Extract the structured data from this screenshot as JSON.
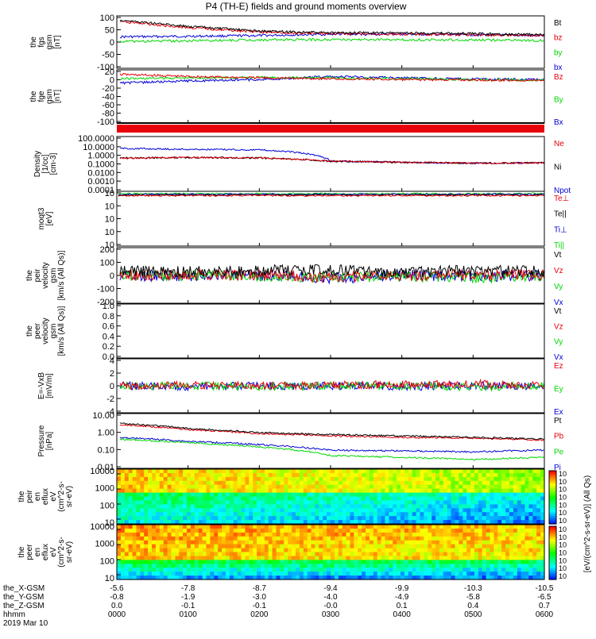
{
  "title": "P4 (TH-E) fields and ground moments overview",
  "colors": {
    "black": "#000000",
    "red": "#e8000b",
    "green": "#00d800",
    "blue": "#0000d6"
  },
  "panels": [
    {
      "id": "fgs-mag",
      "ylabel": [
        "the",
        "fgs",
        "gsm",
        "[nT]"
      ],
      "ticks": [
        "100",
        "50",
        "0",
        "-50",
        "-100"
      ],
      "legend": [
        {
          "label": "Bt",
          "color": "black"
        },
        {
          "label": "bz",
          "color": "red"
        },
        {
          "label": "by",
          "color": "green"
        },
        {
          "label": "bx",
          "color": "blue"
        }
      ]
    },
    {
      "id": "fge-mag",
      "ylabel": [
        "the",
        "fge",
        "gsm",
        "[nT]"
      ],
      "ticks": [
        "20",
        "0",
        "-20",
        "-40",
        "-60",
        "-80",
        "-100"
      ],
      "legend": [
        {
          "label": "Bz",
          "color": "red"
        },
        {
          "label": "By",
          "color": "green"
        },
        {
          "label": "Bx",
          "color": "blue"
        }
      ]
    },
    {
      "id": "density",
      "ylabel": [
        "Density",
        "[1/cc]",
        "[cm-3]"
      ],
      "ticks": [
        "100.0000",
        "10.0000",
        "1.0000",
        "0.1000",
        "0.0100",
        "0.0010",
        "0.0001"
      ],
      "legend": [
        {
          "label": "Ne",
          "color": "red"
        },
        {
          "label": "Ni",
          "color": "black"
        },
        {
          "label": "Npot",
          "color": "blue"
        }
      ]
    },
    {
      "id": "temperature",
      "ylabel": [
        "moqt3",
        "[eV]"
      ],
      "ticks": [
        "10",
        "10",
        "10",
        "10",
        "10"
      ],
      "legend": [
        {
          "label": "Te⊥",
          "color": "red"
        },
        {
          "label": "Te||",
          "color": "black"
        },
        {
          "label": "Ti⊥",
          "color": "blue"
        },
        {
          "label": "Ti||",
          "color": "green"
        }
      ]
    },
    {
      "id": "peir-velocity",
      "ylabel": [
        "the",
        "peir",
        "velocity",
        "gsm",
        "[km/s (All Qs)]"
      ],
      "ticks": [
        "200",
        "100",
        "0",
        "-100",
        "-200"
      ],
      "legend": [
        {
          "label": "Vt",
          "color": "black"
        },
        {
          "label": "Vz",
          "color": "red"
        },
        {
          "label": "Vy",
          "color": "green"
        },
        {
          "label": "Vx",
          "color": "blue"
        }
      ]
    },
    {
      "id": "peer-velocity",
      "ylabel": [
        "the",
        "peer",
        "velocity",
        "gsm",
        "[km/s (All Qs)]"
      ],
      "ticks": [
        "1.0",
        "0.8",
        "0.6",
        "0.4",
        "0.2",
        "0.0"
      ],
      "legend": [
        {
          "label": "Vt",
          "color": "black"
        },
        {
          "label": "Vz",
          "color": "red"
        },
        {
          "label": "Vy",
          "color": "green"
        },
        {
          "label": "Vx",
          "color": "blue"
        }
      ]
    },
    {
      "id": "efield",
      "ylabel": [
        "E=-VxB",
        "[mV/m]"
      ],
      "ticks": [
        "4",
        "2",
        "0",
        "-2",
        "-4"
      ],
      "legend": [
        {
          "label": "Ez",
          "color": "red"
        },
        {
          "label": "Ey",
          "color": "green"
        },
        {
          "label": "Ex",
          "color": "blue"
        }
      ]
    },
    {
      "id": "pressure",
      "ylabel": [
        "Pressure",
        "[nPa]"
      ],
      "ticks": [
        "10.00",
        "1.00",
        "0.10",
        "0.01"
      ],
      "legend": [
        {
          "label": "Pt",
          "color": "black"
        },
        {
          "label": "Pb",
          "color": "red"
        },
        {
          "label": "Pe",
          "color": "green"
        },
        {
          "label": "Pi",
          "color": "blue"
        }
      ]
    },
    {
      "id": "peir-eflux",
      "ylabel": [
        "the",
        "peir",
        "en",
        "eflux",
        "eV",
        "(cm^2-s-",
        "sr-eV)"
      ],
      "ticks": [
        "10000",
        "1000",
        "100",
        "10"
      ]
    },
    {
      "id": "peer-eflux",
      "ylabel": [
        "the",
        "peer",
        "en",
        "eflux",
        "eV",
        "(cm^2-s-",
        "sr-eV)"
      ],
      "ticks": [
        "10000",
        "1000",
        "100",
        "10"
      ]
    }
  ],
  "colorbar": {
    "label": "[eV/(cm^2-s-sr-eV)] (All Qs)",
    "upper_ticks": [
      "10",
      "10",
      "10",
      "10",
      "10",
      "10",
      "10"
    ],
    "lower_ticks": [
      "10",
      "10",
      "10",
      "10",
      "10",
      "10",
      "10"
    ]
  },
  "x_axis": {
    "rows": [
      {
        "label": "the_X-GSM",
        "values": [
          "-5.6",
          "-7.8",
          "-8.7",
          "-9.4",
          "-9.9",
          "-10.3",
          "-10.5"
        ]
      },
      {
        "label": "the_Y-GSM",
        "values": [
          "-0.8",
          "-1.9",
          "-3.0",
          "-4.0",
          "-4.9",
          "-5.8",
          "-6.5"
        ]
      },
      {
        "label": "the_Z-GSM",
        "values": [
          "0.0",
          "-0.1",
          "-0.1",
          "-0.0",
          "0.1",
          "0.4",
          "0.7"
        ]
      },
      {
        "label": "hhmm",
        "values": [
          "0000",
          "0100",
          "0200",
          "0300",
          "0400",
          "0500",
          "0600"
        ]
      }
    ],
    "date": "2019 Mar 10"
  },
  "chart_data": {
    "type": "line",
    "title": "P4 (TH-E) fields and ground moments overview",
    "x": [
      "0000",
      "0100",
      "0200",
      "0300",
      "0400",
      "0500",
      "0600"
    ],
    "xlabel": "hhmm",
    "panels": [
      {
        "name": "the fgs gsm [nT]",
        "ylim": [
          -100,
          100
        ],
        "series": [
          {
            "name": "Bt",
            "color": "black",
            "values": [
              85,
              60,
              42,
              35,
              35,
              32,
              28
            ]
          },
          {
            "name": "bz",
            "color": "red",
            "values": [
              80,
              55,
              38,
              32,
              30,
              28,
              24
            ]
          },
          {
            "name": "by",
            "color": "green",
            "values": [
              2,
              5,
              8,
              10,
              9,
              8,
              6
            ]
          },
          {
            "name": "bx",
            "color": "blue",
            "values": [
              20,
              22,
              25,
              30,
              30,
              28,
              24
            ]
          }
        ]
      },
      {
        "name": "the fge gsm [nT]",
        "ylim": [
          -100,
          20
        ],
        "series": [
          {
            "name": "Bz",
            "color": "red",
            "values": [
              10,
              5,
              2,
              0,
              -2,
              -3,
              -4
            ]
          },
          {
            "name": "By",
            "color": "green",
            "values": [
              0,
              2,
              3,
              2,
              0,
              -2,
              -3
            ]
          },
          {
            "name": "Bx",
            "color": "blue",
            "values": [
              -10,
              -5,
              -2,
              5,
              2,
              -1,
              -2
            ]
          }
        ]
      },
      {
        "name": "Density [1/cc]",
        "ylim": [
          0.0001,
          100
        ],
        "scale": "log",
        "series": [
          {
            "name": "Ne",
            "color": "red",
            "values": [
              0.4,
              0.5,
              0.45,
              0.2,
              0.15,
              0.12,
              0.13
            ]
          },
          {
            "name": "Ni",
            "color": "black",
            "values": [
              0.45,
              0.5,
              0.45,
              0.2,
              0.15,
              0.12,
              0.13
            ]
          },
          {
            "name": "Npot",
            "color": "blue",
            "values": [
              5,
              4,
              3.5,
              0.2,
              0.15,
              0.12,
              0.13
            ]
          }
        ]
      },
      {
        "name": "the peir velocity gsm [km/s (All Qs)]",
        "ylim": [
          -200,
          200
        ],
        "series": [
          {
            "name": "Vt",
            "color": "black",
            "values": [
              30,
              30,
              35,
              40,
              25,
              35,
              30
            ]
          },
          {
            "name": "Vz",
            "color": "red",
            "values": [
              0,
              5,
              3,
              -10,
              0,
              5,
              0
            ]
          },
          {
            "name": "Vy",
            "color": "green",
            "values": [
              5,
              0,
              -5,
              -10,
              -5,
              -15,
              -5
            ]
          },
          {
            "name": "Vx",
            "color": "blue",
            "values": [
              0,
              -5,
              0,
              -20,
              0,
              -5,
              0
            ]
          }
        ]
      },
      {
        "name": "E=-VxB [mV/m]",
        "ylim": [
          -4,
          4
        ],
        "series": [
          {
            "name": "Ez",
            "color": "red",
            "values": [
              0,
              0.1,
              0,
              0.1,
              0.2,
              0.3,
              0
            ]
          },
          {
            "name": "Ey",
            "color": "green",
            "values": [
              0,
              0,
              -0.1,
              0,
              0,
              -0.2,
              0
            ]
          },
          {
            "name": "Ex",
            "color": "blue",
            "values": [
              0,
              -0.1,
              0,
              0,
              -0.1,
              0,
              0
            ]
          }
        ]
      },
      {
        "name": "Pressure [nPa]",
        "ylim": [
          0.01,
          10
        ],
        "scale": "log",
        "series": [
          {
            "name": "Pt",
            "color": "black",
            "values": [
              3,
              1.5,
              0.9,
              0.7,
              0.6,
              0.5,
              0.4
            ]
          },
          {
            "name": "Pb",
            "color": "red",
            "values": [
              2.5,
              1.3,
              0.8,
              0.6,
              0.5,
              0.45,
              0.35
            ]
          },
          {
            "name": "Pe",
            "color": "green",
            "values": [
              0.4,
              0.25,
              0.15,
              0.05,
              0.04,
              0.03,
              0.04
            ]
          },
          {
            "name": "Pi",
            "color": "blue",
            "values": [
              0.5,
              0.3,
              0.2,
              0.1,
              0.09,
              0.08,
              0.1
            ]
          }
        ]
      }
    ]
  }
}
